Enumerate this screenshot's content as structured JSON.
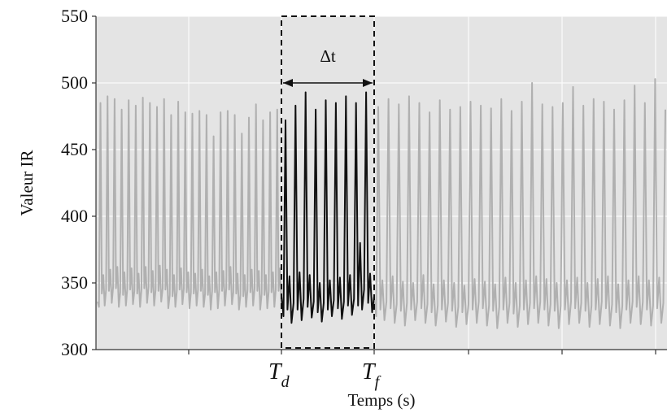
{
  "chart_data": {
    "type": "line",
    "title": "",
    "xlabel": "Temps (s)",
    "ylabel": "Valeur IR",
    "ylim": [
      300,
      550
    ],
    "yticks": [
      300,
      350,
      400,
      450,
      500,
      550
    ],
    "ytick_labels": [
      "300",
      "350",
      "400",
      "450",
      "500",
      "550"
    ],
    "grid": true,
    "legend": "none",
    "colors": {
      "background": "#e4e4e4",
      "signal": "#b0b0b0",
      "segment": "#111111",
      "grid": "#ffffff"
    },
    "window": {
      "start_label": "T",
      "start_sub": "d",
      "end_label": "T",
      "end_sub": "f",
      "duration_label": "Δt"
    },
    "series": [
      {
        "style": "background-signal",
        "values": [
          336,
          332,
          485,
          342,
          356,
          333,
          345,
          490,
          344,
          360,
          335,
          347,
          488,
          346,
          362,
          332,
          343,
          480,
          341,
          358,
          333,
          346,
          487,
          345,
          361,
          334,
          344,
          483,
          342,
          357,
          332,
          345,
          489,
          346,
          362,
          335,
          347,
          485,
          343,
          359,
          333,
          345,
          482,
          344,
          363,
          336,
          346,
          488,
          345,
          360,
          331,
          341,
          476,
          340,
          356,
          332,
          344,
          486,
          345,
          361,
          334,
          346,
          478,
          343,
          358,
          331,
          343,
          477,
          342,
          357,
          333,
          345,
          479,
          344,
          360,
          332,
          342,
          476,
          341,
          355,
          330,
          344,
          460,
          343,
          358,
          331,
          345,
          478,
          344,
          359,
          333,
          346,
          479,
          345,
          362,
          334,
          343,
          476,
          342,
          357,
          330,
          341,
          462,
          340,
          356,
          332,
          345,
          474,
          343,
          360,
          333,
          346,
          484,
          344,
          359,
          330,
          342,
          472,
          341,
          356,
          331,
          344,
          478,
          343,
          358,
          332,
          345,
          480,
          344,
          361,
          334
        ]
      },
      {
        "style": "highlighted-segment",
        "values": [
          340,
          325,
          472,
          330,
          355,
          320,
          335,
          483,
          330,
          358,
          322,
          338,
          493,
          332,
          356,
          324,
          336,
          480,
          328,
          350,
          321,
          335,
          487,
          330,
          352,
          325,
          337,
          485,
          331,
          354,
          323,
          336,
          490,
          333,
          356,
          326,
          338,
          485,
          333,
          380,
          330,
          345,
          493,
          335,
          357,
          328,
          340
        ]
      },
      {
        "style": "background-signal",
        "values": [
          338,
          325,
          482,
          330,
          352,
          322,
          336,
          488,
          331,
          355,
          320,
          334,
          484,
          329,
          351,
          318,
          335,
          490,
          330,
          350,
          322,
          336,
          485,
          331,
          356,
          320,
          334,
          478,
          328,
          349,
          318,
          333,
          487,
          330,
          352,
          321,
          335,
          480,
          329,
          350,
          317,
          332,
          482,
          328,
          348,
          319,
          334,
          486,
          330,
          353,
          320,
          336,
          483,
          331,
          351,
          318,
          333,
          481,
          329,
          349,
          316,
          332,
          488,
          330,
          354,
          320,
          335,
          479,
          327,
          350,
          317,
          333,
          486,
          330,
          352,
          319,
          335,
          500,
          331,
          355,
          320,
          336,
          484,
          330,
          353,
          318,
          334,
          482,
          329,
          350,
          316,
          333,
          485,
          330,
          352,
          319,
          336,
          497,
          331,
          354,
          320,
          335,
          483,
          329,
          350,
          317,
          333,
          488,
          330,
          353,
          319,
          336,
          486,
          331,
          355,
          318,
          334,
          480,
          328,
          349,
          316,
          333,
          487,
          330,
          352,
          320,
          336,
          498,
          332,
          355,
          319,
          336,
          485,
          330,
          352,
          318,
          333,
          503,
          331,
          354,
          320,
          335,
          480
        ]
      }
    ]
  }
}
